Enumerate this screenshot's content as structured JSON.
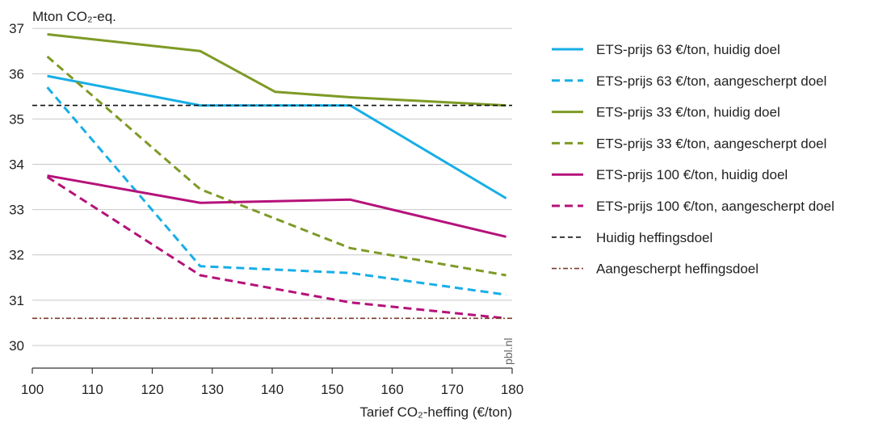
{
  "chart_data": {
    "type": "line",
    "ylabel": "Mton CO₂-eq.",
    "xlabel": "Tarief CO₂-heffing (€/ton)",
    "xlim": [
      100,
      180
    ],
    "ylim": [
      29.5,
      37.2
    ],
    "xticks": [
      100,
      110,
      120,
      130,
      140,
      150,
      160,
      170,
      180
    ],
    "yticks": [
      30,
      31,
      32,
      33,
      34,
      35,
      36,
      37
    ],
    "grid": "horizontal",
    "legend_position": "right",
    "watermark": "pbl.nl",
    "series": [
      {
        "name": "ETS-prijs 63 €/ton, huidig doel",
        "color": "#17aee6",
        "dash": "solid",
        "x": [
          102.5,
          128,
          153,
          179
        ],
        "y": [
          35.95,
          35.3,
          35.3,
          33.25
        ]
      },
      {
        "name": "ETS-prijs 63 €/ton, aangescherpt doel",
        "color": "#17aee6",
        "dash": "dashed",
        "x": [
          102.5,
          128,
          153,
          179
        ],
        "y": [
          35.7,
          31.75,
          31.6,
          31.12
        ]
      },
      {
        "name": "ETS-prijs 33 €/ton, huidig doel",
        "color": "#7e9a26",
        "dash": "solid",
        "x": [
          102.5,
          128,
          140.5,
          153,
          179
        ],
        "y": [
          36.87,
          36.5,
          35.6,
          35.48,
          35.3
        ]
      },
      {
        "name": "ETS-prijs 33 €/ton, aangescherpt doel",
        "color": "#7e9a26",
        "dash": "dashed",
        "x": [
          102.5,
          128,
          153,
          179
        ],
        "y": [
          36.38,
          33.45,
          32.15,
          31.55
        ]
      },
      {
        "name": "ETS-prijs 100 €/ton, huidig doel",
        "color": "#b5127a",
        "dash": "solid",
        "x": [
          102.5,
          128,
          153,
          179
        ],
        "y": [
          33.75,
          33.15,
          33.22,
          32.4
        ]
      },
      {
        "name": "ETS-prijs 100 €/ton, aangescherpt doel",
        "color": "#b5127a",
        "dash": "dashed",
        "x": [
          102.5,
          128,
          153,
          179
        ],
        "y": [
          33.72,
          31.55,
          30.95,
          30.6
        ]
      },
      {
        "name": "Huidig heffingsdoel",
        "color": "#111111",
        "dash": "shortdash",
        "x": [
          100,
          180
        ],
        "y": [
          35.3,
          35.3
        ]
      },
      {
        "name": "Aangescherpt heffingsdoel",
        "color": "#7a3b2a",
        "dash": "dashdot",
        "x": [
          100,
          180
        ],
        "y": [
          30.6,
          30.6
        ]
      }
    ]
  }
}
